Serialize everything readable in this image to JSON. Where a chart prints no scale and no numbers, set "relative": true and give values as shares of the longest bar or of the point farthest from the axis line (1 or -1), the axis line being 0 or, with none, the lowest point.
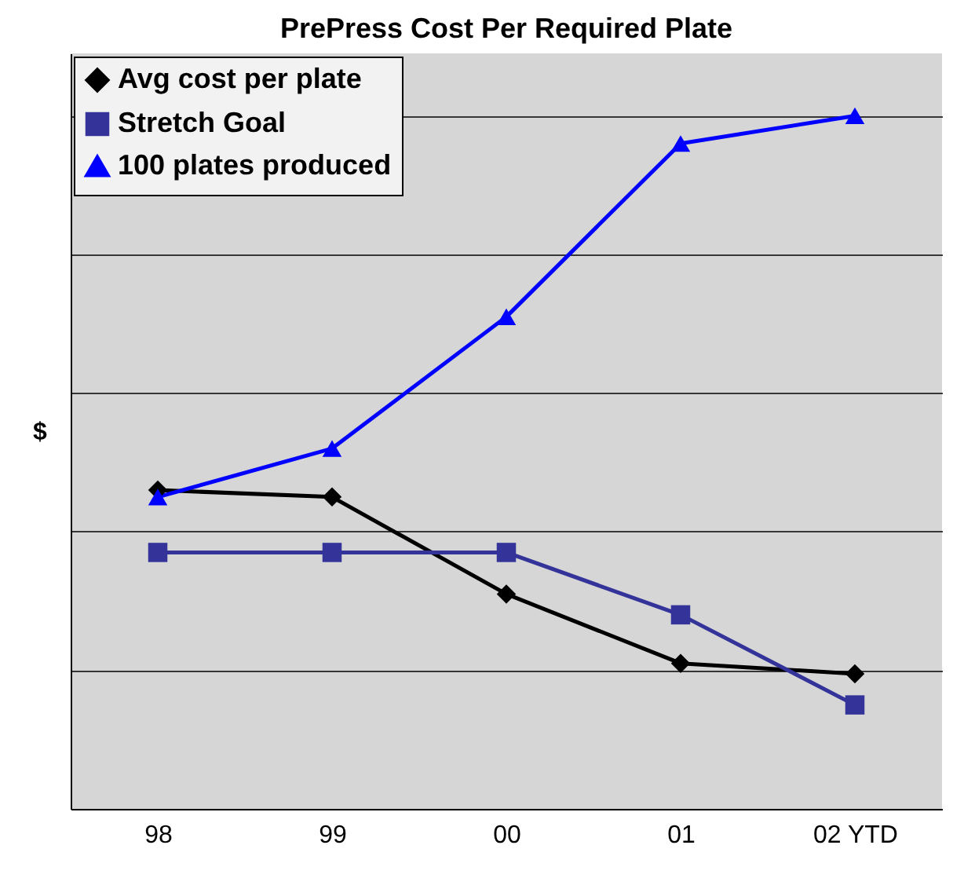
{
  "chart_data": {
    "type": "line",
    "title": "PrePress Cost Per Required Plate",
    "ylabel": "$",
    "relative": true,
    "grid": "y",
    "legend": "top left",
    "categories": [
      "98",
      "99",
      "00",
      "01",
      "02 YTD"
    ],
    "series": [
      {
        "name": "Avg cost per plate",
        "color": "#000000",
        "marker": "diamond",
        "values": [
          0.46,
          0.45,
          0.31,
          0.21,
          0.195
        ]
      },
      {
        "name": "Stretch Goal",
        "color": "#333399",
        "marker": "square",
        "values": [
          0.37,
          0.37,
          0.37,
          0.28,
          0.15
        ]
      },
      {
        "name": "100 plates produced",
        "color": "#0000ff",
        "marker": "triangle",
        "values": [
          0.45,
          0.52,
          0.71,
          0.96,
          1
        ]
      }
    ]
  }
}
